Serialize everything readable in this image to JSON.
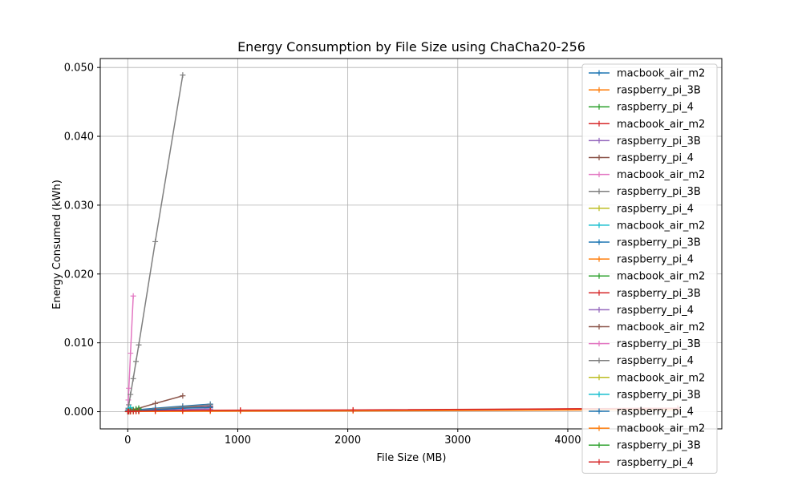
{
  "chart_data": {
    "type": "line",
    "title": "Energy Consumption by File Size using ChaCha20-256",
    "xlabel": "File Size (MB)",
    "ylabel": "Energy Consumed (kWh)",
    "xlim": [
      -250,
      5400
    ],
    "ylim": [
      -0.0025,
      0.0513
    ],
    "xticks": [
      0,
      1000,
      2000,
      3000,
      4000
    ],
    "xtick_labels": [
      "0",
      "1000",
      "2000",
      "3000",
      "4000"
    ],
    "yticks": [
      0.0,
      0.01,
      0.02,
      0.03,
      0.04,
      0.05
    ],
    "ytick_labels": [
      "0.000",
      "0.010",
      "0.020",
      "0.030",
      "0.040",
      "0.050"
    ],
    "grid": true,
    "legend_position": "right",
    "marker": "+",
    "series": [
      {
        "name": "macbook_air_m2",
        "color": "#1f77b4",
        "x": [
          1,
          5,
          10,
          25,
          50,
          75,
          100
        ],
        "y": [
          1e-05,
          2e-05,
          3e-05,
          5e-05,
          0.0001,
          0.00015,
          0.0002
        ]
      },
      {
        "name": "raspberry_pi_3B",
        "color": "#ff7f0e",
        "x": [
          1,
          5,
          10,
          25,
          50
        ],
        "y": [
          1e-05,
          3e-05,
          5e-05,
          0.0001,
          0.0002
        ]
      },
      {
        "name": "raspberry_pi_4",
        "color": "#2ca02c",
        "x": [
          1,
          5,
          10,
          25,
          50,
          75,
          100
        ],
        "y": [
          2e-05,
          4e-05,
          7e-05,
          0.00012,
          0.0002,
          0.00025,
          0.0003
        ]
      },
      {
        "name": "macbook_air_m2",
        "color": "#d62728",
        "x": [
          1,
          5,
          10,
          25,
          50,
          75,
          100
        ],
        "y": [
          1e-05,
          2e-05,
          2e-05,
          4e-05,
          6e-05,
          8e-05,
          0.0001
        ]
      },
      {
        "name": "raspberry_pi_3B",
        "color": "#9467bd",
        "x": [
          1,
          5,
          10,
          25,
          50,
          75,
          100,
          250,
          500,
          750
        ],
        "y": [
          1e-05,
          2e-05,
          4e-05,
          8e-05,
          0.00015,
          0.0002,
          0.00025,
          0.0004,
          0.0006,
          0.0008
        ]
      },
      {
        "name": "raspberry_pi_4",
        "color": "#8c564b",
        "x": [
          1,
          5,
          10,
          25,
          50,
          75,
          100,
          250,
          500
        ],
        "y": [
          1e-05,
          3e-05,
          5e-05,
          0.00012,
          0.00025,
          0.0004,
          0.0005,
          0.0012,
          0.0023
        ]
      },
      {
        "name": "macbook_air_m2",
        "color": "#e377c2",
        "x": [
          1,
          5,
          10,
          25,
          50
        ],
        "y": [
          0.0003,
          0.0017,
          0.0034,
          0.0085,
          0.0168
        ]
      },
      {
        "name": "raspberry_pi_3B",
        "color": "#7f7f7f",
        "x": [
          1,
          5,
          10,
          25,
          50,
          75,
          100,
          250,
          500
        ],
        "y": [
          0.0001,
          0.0005,
          0.001,
          0.0025,
          0.0048,
          0.0073,
          0.0097,
          0.0247,
          0.0489
        ]
      },
      {
        "name": "raspberry_pi_4",
        "color": "#bcbd22",
        "x": [
          1,
          5,
          10,
          25,
          50,
          75,
          100
        ],
        "y": [
          1e-05,
          2e-05,
          3e-05,
          6e-05,
          0.0001,
          0.00014,
          0.00018
        ]
      },
      {
        "name": "macbook_air_m2",
        "color": "#17becf",
        "x": [
          1,
          5,
          10,
          25,
          50,
          75,
          100
        ],
        "y": [
          5e-05,
          0.0002,
          0.0004,
          0.0006,
          0.0003,
          0.0002,
          0.0001
        ]
      },
      {
        "name": "raspberry_pi_3B",
        "color": "#1f77b4",
        "x": [
          1,
          5,
          10,
          25,
          50,
          75,
          100,
          250,
          500,
          750
        ],
        "y": [
          2e-05,
          6e-05,
          0.0001,
          0.00015,
          0.0002,
          0.00025,
          0.0003,
          0.0005,
          0.0008,
          0.0011
        ]
      },
      {
        "name": "raspberry_pi_4",
        "color": "#ff7f0e",
        "x": [
          1,
          5,
          10,
          25,
          50,
          75,
          100,
          250,
          500,
          750,
          1024,
          2048,
          5000
        ],
        "y": [
          1e-05,
          1e-05,
          1e-05,
          2e-05,
          3e-05,
          4e-05,
          5e-05,
          8e-05,
          0.0001,
          0.0001,
          0.00012,
          0.0002,
          0.0003
        ]
      },
      {
        "name": "macbook_air_m2",
        "color": "#2ca02c",
        "x": [
          1,
          5,
          10,
          25,
          50,
          75,
          100
        ],
        "y": [
          2e-05,
          4e-05,
          7e-05,
          0.00015,
          0.0003,
          0.0004,
          0.0005
        ]
      },
      {
        "name": "raspberry_pi_3B",
        "color": "#d62728",
        "x": [
          1,
          5,
          10,
          25,
          50,
          75,
          100,
          250,
          500,
          750,
          1024,
          2048,
          5000
        ],
        "y": [
          1e-05,
          1e-05,
          2e-05,
          3e-05,
          5e-05,
          7e-05,
          9e-05,
          0.00012,
          0.00015,
          0.00018,
          0.0002,
          0.0002,
          0.0005
        ]
      },
      {
        "name": "raspberry_pi_4",
        "color": "#9467bd",
        "x": [
          1,
          5,
          10,
          25,
          50,
          75,
          100,
          250,
          500,
          750
        ],
        "y": [
          1e-05,
          2e-05,
          3e-05,
          5e-05,
          8e-05,
          0.0001,
          0.00013,
          0.0002,
          0.0003,
          0.0004
        ]
      },
      {
        "name": "macbook_air_m2",
        "color": "#8c564b",
        "x": [
          1,
          5,
          10,
          25,
          50,
          75,
          100,
          250,
          500,
          750
        ],
        "y": [
          1e-05,
          2e-05,
          4e-05,
          8e-05,
          0.00012,
          0.00016,
          0.0002,
          0.0004,
          0.0006,
          0.0007
        ]
      },
      {
        "name": "raspberry_pi_3B",
        "color": "#e377c2",
        "x": [
          1,
          5,
          10,
          25,
          50
        ],
        "y": [
          1e-05,
          3e-05,
          6e-05,
          0.00012,
          0.0002
        ]
      },
      {
        "name": "raspberry_pi_4",
        "color": "#7f7f7f",
        "x": [
          1,
          5,
          10,
          25,
          50,
          75,
          100,
          250,
          500,
          750
        ],
        "y": [
          1e-05,
          2e-05,
          4e-05,
          8e-05,
          0.00012,
          0.00016,
          0.0002,
          0.0004,
          0.0007,
          0.001
        ]
      },
      {
        "name": "macbook_air_m2",
        "color": "#bcbd22",
        "x": [
          1,
          5,
          10,
          25,
          50
        ],
        "y": [
          1e-05,
          2e-05,
          3e-05,
          5e-05,
          8e-05
        ]
      },
      {
        "name": "raspberry_pi_3B",
        "color": "#17becf",
        "x": [
          1,
          5,
          10,
          25,
          50,
          75,
          100
        ],
        "y": [
          2e-05,
          4e-05,
          6e-05,
          0.0001,
          0.00015,
          0.0002,
          0.00025
        ]
      },
      {
        "name": "raspberry_pi_4",
        "color": "#1f77b4",
        "x": [
          1,
          5,
          10,
          25,
          50,
          75,
          100,
          250,
          500,
          750
        ],
        "y": [
          1e-05,
          2e-05,
          3e-05,
          6e-05,
          0.0001,
          0.00013,
          0.00016,
          0.0003,
          0.0005,
          0.0006
        ]
      },
      {
        "name": "macbook_air_m2",
        "color": "#ff7f0e",
        "x": [
          1,
          5,
          10,
          25,
          50,
          75,
          100,
          250,
          500,
          750,
          1024,
          2048,
          5000
        ],
        "y": [
          5e-06,
          1e-05,
          1e-05,
          2e-05,
          2e-05,
          3e-05,
          3e-05,
          4e-05,
          5e-05,
          6e-05,
          8e-05,
          0.0001,
          0.0003
        ]
      },
      {
        "name": "raspberry_pi_3B",
        "color": "#2ca02c",
        "x": [
          1,
          5,
          10,
          25,
          50,
          75,
          100
        ],
        "y": [
          1e-05,
          3e-05,
          5e-05,
          0.0001,
          0.00018,
          0.00024,
          0.0003
        ]
      },
      {
        "name": "raspberry_pi_4",
        "color": "#d62728",
        "x": [
          1,
          5,
          10,
          25,
          50,
          75,
          100,
          250,
          500,
          750,
          1024,
          2048,
          5000
        ],
        "y": [
          1e-05,
          2e-05,
          3e-05,
          4e-05,
          6e-05,
          7e-05,
          9e-05,
          0.00013,
          0.00017,
          0.0002,
          0.00022,
          0.00025,
          0.0005
        ]
      }
    ]
  }
}
